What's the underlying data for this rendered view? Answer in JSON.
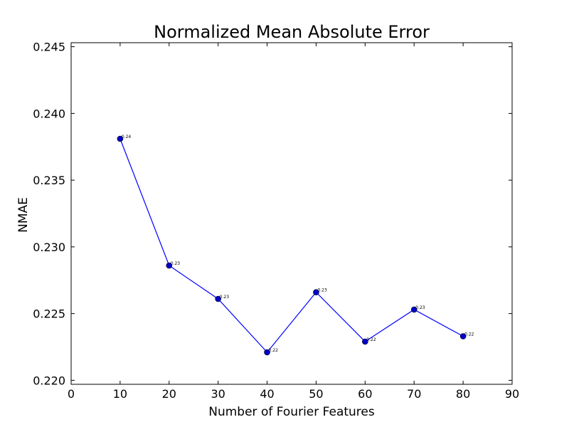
{
  "chart_data": {
    "type": "line",
    "title": "Normalized Mean Absolute Error",
    "xlabel": "Number of Fourier Features",
    "ylabel": "NMAE",
    "xlim": [
      0,
      90
    ],
    "ylim": [
      0.2197,
      0.2453
    ],
    "xticks": [
      0,
      10,
      20,
      30,
      40,
      50,
      60,
      70,
      80,
      90
    ],
    "xtick_labels": [
      "0",
      "10",
      "20",
      "30",
      "40",
      "50",
      "60",
      "70",
      "80",
      "90"
    ],
    "yticks": [
      0.22,
      0.225,
      0.23,
      0.235,
      0.24,
      0.245
    ],
    "ytick_labels": [
      "0.220",
      "0.225",
      "0.230",
      "0.235",
      "0.240",
      "0.245"
    ],
    "grid": false,
    "line_color": "#0000ff",
    "marker_color": "#0000cc",
    "series": [
      {
        "x": [
          10,
          20,
          30,
          40,
          50,
          60,
          70,
          80
        ],
        "y": [
          0.2381,
          0.2286,
          0.2261,
          0.2221,
          0.2266,
          0.2229,
          0.2253,
          0.2233
        ],
        "labels": [
          "0.24",
          "0.23",
          "0.23",
          "0.22",
          "0.23",
          "0.22",
          "0.23",
          "0.22"
        ]
      }
    ]
  }
}
